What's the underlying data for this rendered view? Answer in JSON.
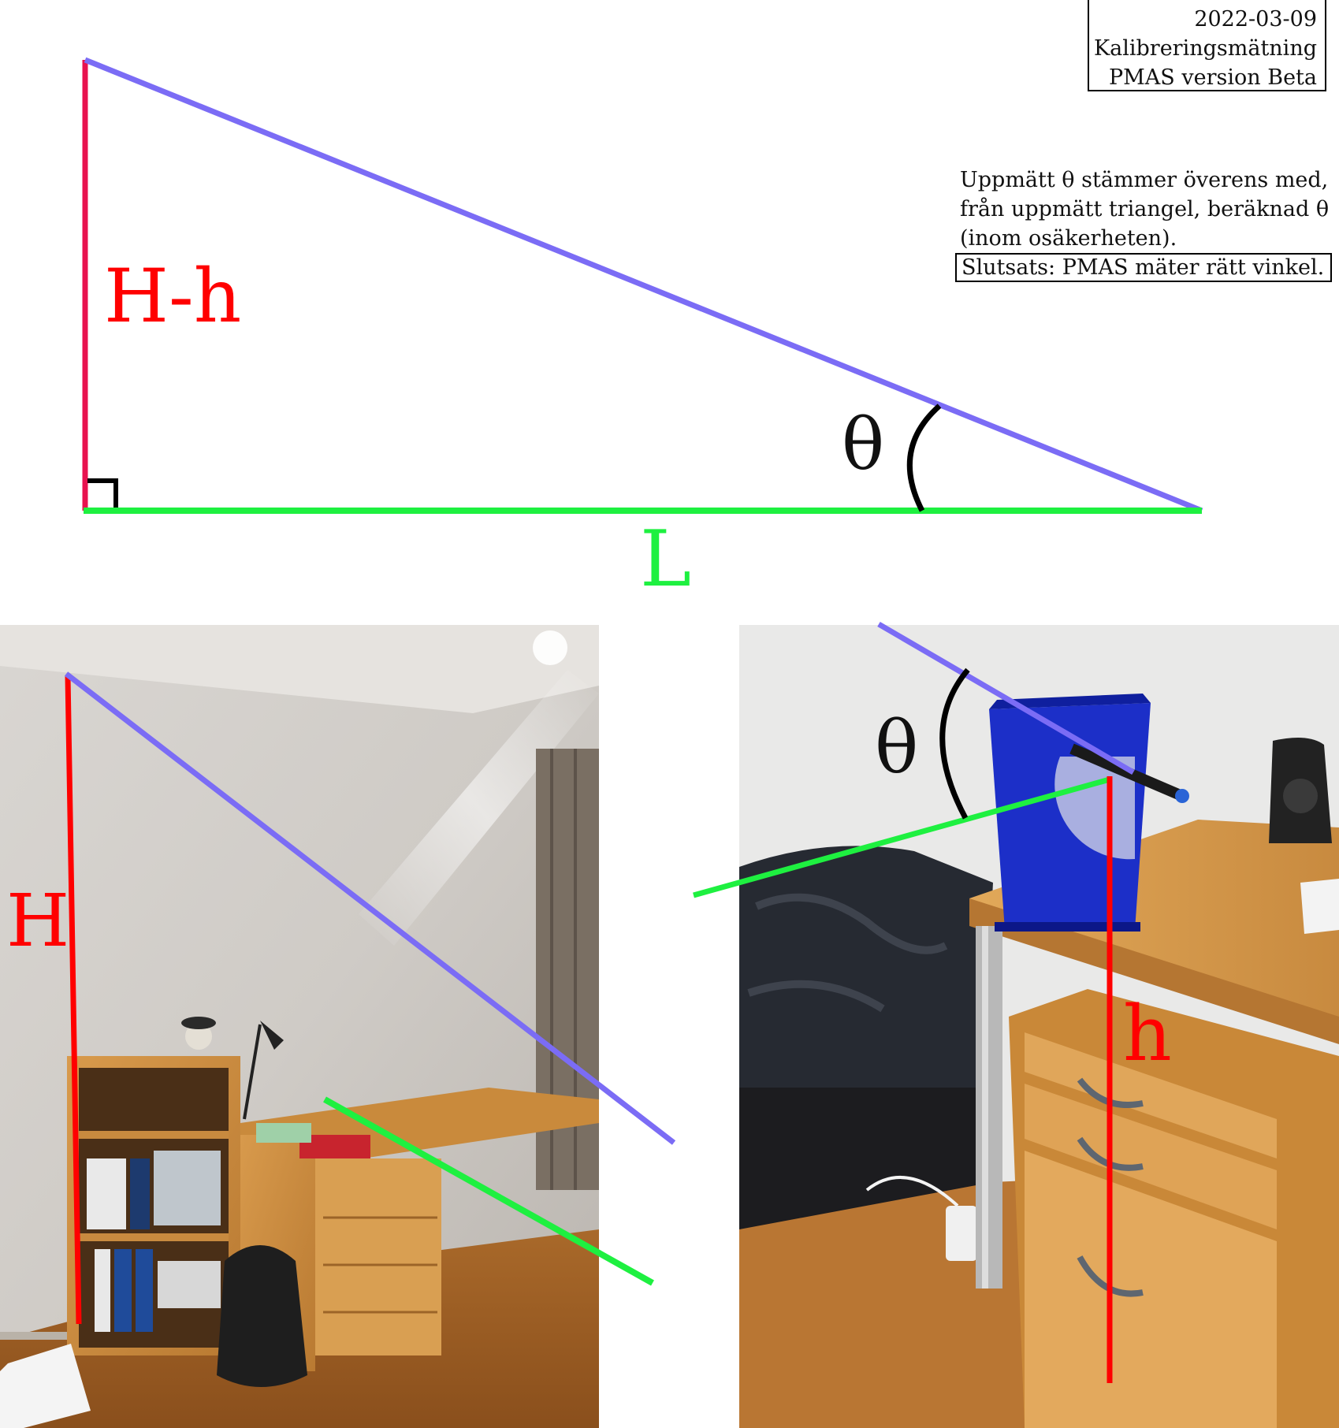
{
  "header": {
    "date": "2022-03-09",
    "title": "Kalibreringsmätning",
    "version": "PMAS version Beta"
  },
  "note": {
    "line1": "Uppmätt θ stämmer överens med,",
    "line2": "från uppmätt triangel, beräknad θ",
    "line3": "(inom osäkerheten).",
    "conclusion": "Slutsats: PMAS mäter rätt vinkel."
  },
  "triangle": {
    "vertical_label": "H-h",
    "base_label": "L",
    "angle_label": "θ"
  },
  "photo_left": {
    "height_label": "H"
  },
  "photo_right": {
    "angle_label": "θ",
    "height_label": "h"
  },
  "colors": {
    "vertical": "#e8124f",
    "hypotenuse": "#7b6cf5",
    "base": "#1ef040",
    "label_red": "#ff0000",
    "label_green": "#1ef040",
    "right_angle_mark": "#000000"
  }
}
